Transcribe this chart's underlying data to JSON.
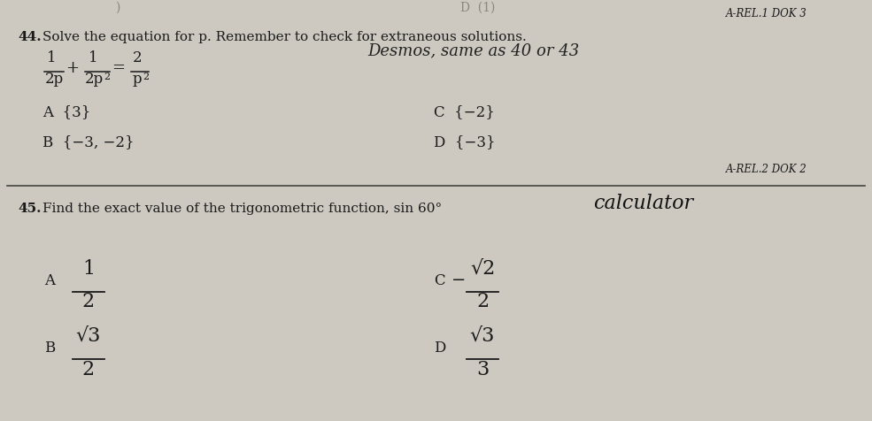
{
  "bg_color": "#cdc8c0",
  "text_color": "#1a1a1a",
  "header_label": "A-REL.1 DOK 3",
  "q44_standard": "A-REL.2 DOK 2",
  "q44_A": "A  {3}",
  "q44_B": "B  {−3, −2}",
  "q44_C": "C  {−2}",
  "q44_D": "D  {−3}",
  "figsize": [
    9.85,
    4.76
  ],
  "dpi": 100
}
